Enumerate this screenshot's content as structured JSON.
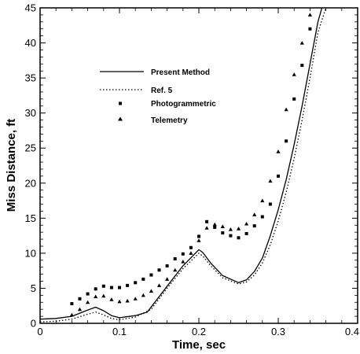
{
  "chart_data": {
    "type": "line",
    "xlabel": "Time, sec",
    "ylabel": "Miss Distance, ft",
    "xlim": [
      0,
      0.4
    ],
    "ylim": [
      0,
      45
    ],
    "xticks": [
      0,
      0.1,
      0.2,
      0.3,
      0.4
    ],
    "xtick_labels": [
      "0",
      "0.1",
      "0.2",
      "0.3",
      "0.4"
    ],
    "yticks": [
      0,
      5,
      10,
      15,
      20,
      25,
      30,
      35,
      40,
      45
    ],
    "ytick_labels": [
      "0",
      "5",
      "10",
      "15",
      "20",
      "25",
      "30",
      "35",
      "40",
      "45"
    ],
    "grid": false,
    "legend_position": "upper-left",
    "series": [
      {
        "name": "Present Method",
        "style": "solid-line",
        "color": "#000000",
        "x": [
          0,
          0.02,
          0.04,
          0.06,
          0.07,
          0.08,
          0.09,
          0.1,
          0.12,
          0.135,
          0.16,
          0.18,
          0.2,
          0.205,
          0.215,
          0.23,
          0.25,
          0.26,
          0.27,
          0.28,
          0.29,
          0.3,
          0.31,
          0.32,
          0.33,
          0.34,
          0.35,
          0.355
        ],
        "y": [
          0.6,
          0.7,
          1.0,
          1.9,
          2.3,
          1.8,
          1.1,
          0.8,
          1.1,
          1.6,
          5.3,
          8.2,
          10.5,
          10.1,
          8.6,
          6.8,
          5.8,
          6.2,
          7.4,
          9.3,
          12.5,
          16.2,
          20.5,
          25.5,
          31.0,
          37.0,
          43.0,
          45.0
        ]
      },
      {
        "name": "Ref. 5",
        "style": "dotted-line",
        "color": "#000000",
        "x": [
          0,
          0.02,
          0.04,
          0.06,
          0.07,
          0.08,
          0.09,
          0.1,
          0.12,
          0.14,
          0.16,
          0.18,
          0.2,
          0.205,
          0.215,
          0.23,
          0.25,
          0.26,
          0.27,
          0.28,
          0.29,
          0.3,
          0.31,
          0.32,
          0.33,
          0.34,
          0.35,
          0.36
        ],
        "y": [
          0.2,
          0.3,
          0.6,
          1.3,
          1.6,
          1.2,
          0.7,
          0.5,
          0.9,
          2.0,
          5.0,
          7.8,
          10.0,
          9.6,
          8.2,
          6.5,
          5.6,
          5.9,
          6.9,
          8.6,
          11.2,
          14.6,
          18.7,
          23.5,
          29.0,
          35.0,
          41.5,
          45.0
        ]
      },
      {
        "name": "Photogrammetric",
        "style": "square-markers",
        "color": "#000000",
        "x": [
          0.04,
          0.05,
          0.06,
          0.07,
          0.08,
          0.09,
          0.1,
          0.11,
          0.12,
          0.13,
          0.14,
          0.15,
          0.16,
          0.17,
          0.18,
          0.19,
          0.2,
          0.21,
          0.22,
          0.23,
          0.24,
          0.25,
          0.26,
          0.27,
          0.28,
          0.29,
          0.3,
          0.31,
          0.32,
          0.33,
          0.34
        ],
        "y": [
          2.8,
          3.5,
          4.2,
          4.9,
          5.3,
          5.1,
          5.1,
          5.4,
          5.8,
          6.3,
          6.9,
          7.6,
          8.2,
          9.2,
          9.9,
          10.8,
          12.4,
          14.5,
          13.7,
          12.9,
          12.5,
          12.2,
          12.8,
          13.9,
          15.2,
          17.0,
          21.0,
          26.0,
          32.0,
          36.8,
          42.0
        ]
      },
      {
        "name": "Telemetry",
        "style": "triangle-markers",
        "color": "#000000",
        "x": [
          0.04,
          0.05,
          0.06,
          0.07,
          0.08,
          0.09,
          0.1,
          0.11,
          0.12,
          0.13,
          0.14,
          0.15,
          0.16,
          0.17,
          0.18,
          0.19,
          0.2,
          0.21,
          0.22,
          0.23,
          0.24,
          0.25,
          0.26,
          0.27,
          0.28,
          0.29,
          0.3,
          0.31,
          0.32,
          0.33,
          0.34
        ],
        "y": [
          1.2,
          2.0,
          3.0,
          3.8,
          3.9,
          3.4,
          3.1,
          3.2,
          3.5,
          4.0,
          4.6,
          5.4,
          6.3,
          7.6,
          8.8,
          10.0,
          11.8,
          13.6,
          14.1,
          13.8,
          13.4,
          13.5,
          14.2,
          15.5,
          17.5,
          20.3,
          24.5,
          30.5,
          35.5,
          40.0,
          44.0
        ]
      }
    ]
  }
}
